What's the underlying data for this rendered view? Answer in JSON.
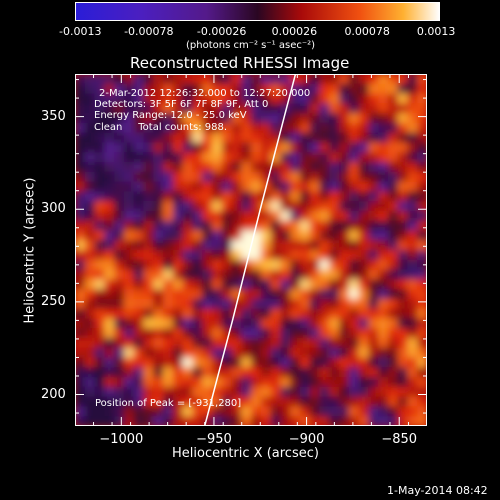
{
  "colorbar": {
    "tick_labels": [
      "-0.0013",
      "-0.00078",
      "-0.00026",
      "0.00026",
      "0.00078",
      "0.0013"
    ],
    "unit_label": "(photons cm⁻² s⁻¹ asec⁻²)",
    "range": [
      -0.0013,
      0.0013
    ]
  },
  "chart_data": {
    "type": "heatmap",
    "title": "Reconstructed RHESSI Image",
    "xlabel": "Heliocentric X (arcsec)",
    "ylabel": "Heliocentric Y (arcsec)",
    "xlim": [
      -1025,
      -835
    ],
    "ylim": [
      183,
      373
    ],
    "x_ticks": [
      -1000,
      -950,
      -900,
      -850
    ],
    "y_ticks": [
      200,
      250,
      300,
      350
    ],
    "x_tick_labels": [
      "−1000",
      "−950",
      "−900",
      "−850"
    ],
    "y_tick_labels": [
      "200",
      "250",
      "300",
      "350"
    ],
    "peak": [
      -931,
      280
    ],
    "info_lines": [
      "2-Mar-2012 12:26:32.000 to 12:27:20.000",
      "Detectors: 3F 5F 6F 7F 8F 9F, Att 0",
      "Energy Range: 12.0 - 25.0 keV",
      "Clean     Total counts: 988."
    ],
    "peak_text": "Position of Peak = [-931,280]",
    "limb_curve": [
      [
        -955,
        183
      ],
      [
        -940,
        240
      ],
      [
        -925,
        300
      ],
      [
        -912,
        350
      ],
      [
        -906,
        373
      ]
    ]
  },
  "footer": {
    "date": "1-May-2014 08:42"
  }
}
